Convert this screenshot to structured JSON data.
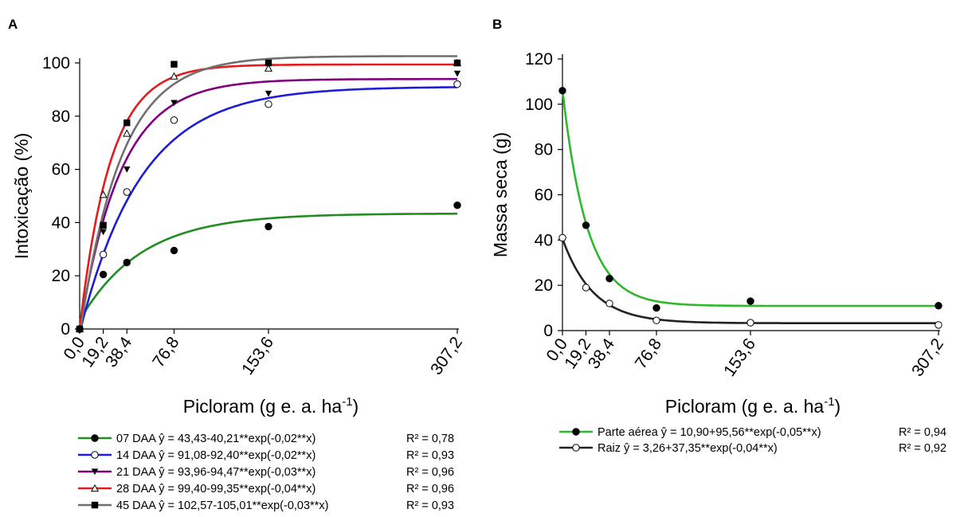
{
  "chart_data": [
    {
      "panel_label": "A",
      "type": "scatter",
      "ylabel": "Intoxicação (%)",
      "xlabel_main": "Picloram (g e. a. ha",
      "xlabel_sup": "-1",
      "xlabel_close": ")",
      "ylim": [
        0,
        100
      ],
      "yticks": [
        0,
        20,
        40,
        60,
        80,
        100
      ],
      "xticks": [
        0,
        19.2,
        38.4,
        76.8,
        153.6,
        307.2
      ],
      "xticklabels": [
        "0,0",
        "19,2",
        "38,4",
        "76,8",
        "153,6",
        "307,2"
      ],
      "grid": false,
      "legend_position": "bottom",
      "series": [
        {
          "name": "07 DAA",
          "equation": "ŷ = 43,43-40,21**exp(-0,02**x)",
          "r2": "R² = 0,78",
          "color": "#228B22",
          "marker": "filled-circle",
          "x": [
            0,
            19.2,
            38.4,
            76.8,
            153.6,
            307.2
          ],
          "y": [
            0,
            20.5,
            25,
            29.5,
            38.5,
            46.5
          ],
          "a": 43.43,
          "b": 40.21,
          "k": 0.02
        },
        {
          "name": "14 DAA",
          "equation": "ŷ = 91,08-92,40**exp(-0,02**x)",
          "r2": "R² = 0,93",
          "color": "#1C1CD9",
          "marker": "open-circle",
          "x": [
            0,
            19.2,
            38.4,
            76.8,
            153.6,
            307.2
          ],
          "y": [
            0,
            28,
            51.5,
            78.5,
            84.5,
            92
          ],
          "a": 91.08,
          "b": 92.4,
          "k": 0.02
        },
        {
          "name": "21 DAA",
          "equation": "ŷ = 93,96-94,47**exp(-0,03**x)",
          "r2": "R² = 0,96",
          "color": "#800080",
          "marker": "filled-triangle-down",
          "x": [
            0,
            19.2,
            38.4,
            76.8,
            153.6,
            307.2
          ],
          "y": [
            0,
            36.5,
            60,
            85,
            88.5,
            96
          ],
          "a": 93.96,
          "b": 94.47,
          "k": 0.03
        },
        {
          "name": "28 DAA",
          "equation": "ŷ = 99,40-99,35**exp(-0,04**x)",
          "r2": "R² = 0,96",
          "color": "#E41A1C",
          "marker": "open-triangle-up",
          "x": [
            0,
            19.2,
            38.4,
            76.8,
            153.6,
            307.2
          ],
          "y": [
            0,
            50.5,
            73.5,
            95,
            98,
            100
          ],
          "a": 99.4,
          "b": 99.35,
          "k": 0.04
        },
        {
          "name": "45 DAA",
          "equation": "ŷ  = 102,57-105,01**exp(-0,03**x)",
          "r2": "R² = 0,93",
          "color": "#707070",
          "marker": "filled-square",
          "x": [
            0,
            19.2,
            38.4,
            76.8,
            153.6,
            307.2
          ],
          "y": [
            0,
            39,
            77.5,
            99.5,
            100,
            100
          ],
          "a": 102.57,
          "b": 105.01,
          "k": 0.03
        }
      ]
    },
    {
      "panel_label": "B",
      "type": "scatter",
      "ylabel": "Massa seca (g)",
      "xlabel_main": "Picloram (g e. a. ha",
      "xlabel_sup": "-1",
      "xlabel_close": ")",
      "ylim": [
        0,
        120
      ],
      "yticks": [
        0,
        20,
        40,
        60,
        80,
        100,
        120
      ],
      "xticks": [
        0,
        19.2,
        38.4,
        76.8,
        153.6,
        307.2
      ],
      "xticklabels": [
        "0,0",
        "19,2",
        "38,4",
        "76,8",
        "153,6",
        "307,2"
      ],
      "grid": false,
      "legend_position": "bottom",
      "series": [
        {
          "name": "Parte aérea",
          "equation": "ŷ = 10,90+95,56**exp(-0,05**x)",
          "r2": "R² = 0,94",
          "color": "#2DB82D",
          "marker": "filled-circle",
          "x": [
            0,
            19.2,
            38.4,
            76.8,
            153.6,
            307.2
          ],
          "y": [
            106,
            46.5,
            23,
            10,
            13,
            11
          ],
          "a": 10.9,
          "b": 95.56,
          "k": 0.05
        },
        {
          "name": "Raiz",
          "equation": "ŷ = 3,26+37,35**exp(-0,04**x)",
          "r2": "R² = 0,92",
          "color": "#222222",
          "marker": "open-circle",
          "x": [
            0,
            19.2,
            38.4,
            76.8,
            153.6,
            307.2
          ],
          "y": [
            41,
            19,
            12,
            4.5,
            3.5,
            2.5
          ],
          "a": 3.26,
          "b": 37.35,
          "k": 0.04
        }
      ]
    }
  ]
}
